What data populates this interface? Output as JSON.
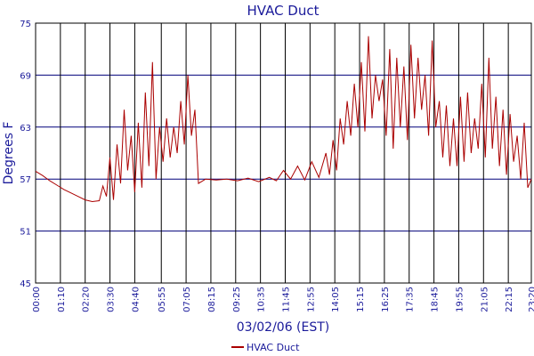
{
  "chart_data": {
    "type": "line",
    "title": "HVAC Duct",
    "xlabel": "03/02/06 (EST)",
    "ylabel": "Degrees F",
    "ylim": [
      45,
      75
    ],
    "yticks": [
      45,
      51,
      57,
      63,
      69,
      75
    ],
    "xlim": [
      "00:00",
      "23:20"
    ],
    "xticks": [
      "00:00",
      "01:10",
      "02:20",
      "03:30",
      "04:40",
      "05:55",
      "07:05",
      "08:15",
      "09:25",
      "10:35",
      "11:45",
      "12:55",
      "14:05",
      "15:15",
      "16:25",
      "17:35",
      "18:45",
      "19:55",
      "21:05",
      "22:15",
      "23:20"
    ],
    "grid": true,
    "legend": "bottom-center",
    "series": [
      {
        "name": "HVAC Duct",
        "color": "#aa0000",
        "points": [
          [
            "00:00",
            57.9
          ],
          [
            "00:20",
            57.4
          ],
          [
            "00:40",
            56.8
          ],
          [
            "01:00",
            56.3
          ],
          [
            "01:20",
            55.8
          ],
          [
            "01:40",
            55.4
          ],
          [
            "02:00",
            55.0
          ],
          [
            "02:20",
            54.6
          ],
          [
            "02:40",
            54.4
          ],
          [
            "03:00",
            54.5
          ],
          [
            "03:10",
            56.2
          ],
          [
            "03:20",
            55.0
          ],
          [
            "03:30",
            59.5
          ],
          [
            "03:40",
            54.6
          ],
          [
            "03:50",
            61.0
          ],
          [
            "04:00",
            56.5
          ],
          [
            "04:10",
            65.0
          ],
          [
            "04:20",
            58.0
          ],
          [
            "04:30",
            62.0
          ],
          [
            "04:40",
            55.5
          ],
          [
            "04:50",
            63.5
          ],
          [
            "05:00",
            56.0
          ],
          [
            "05:10",
            67.0
          ],
          [
            "05:20",
            58.5
          ],
          [
            "05:30",
            70.5
          ],
          [
            "05:40",
            57.0
          ],
          [
            "05:50",
            63.0
          ],
          [
            "06:00",
            59.0
          ],
          [
            "06:10",
            64.0
          ],
          [
            "06:20",
            59.5
          ],
          [
            "06:30",
            63.0
          ],
          [
            "06:40",
            60.0
          ],
          [
            "06:50",
            66.0
          ],
          [
            "07:00",
            61.0
          ],
          [
            "07:10",
            69.0
          ],
          [
            "07:20",
            62.0
          ],
          [
            "07:30",
            65.0
          ],
          [
            "07:40",
            56.5
          ],
          [
            "08:00",
            57.0
          ],
          [
            "08:30",
            56.9
          ],
          [
            "09:00",
            57.0
          ],
          [
            "09:30",
            56.8
          ],
          [
            "10:00",
            57.1
          ],
          [
            "10:30",
            56.7
          ],
          [
            "11:00",
            57.2
          ],
          [
            "11:20",
            56.8
          ],
          [
            "11:40",
            58.0
          ],
          [
            "12:00",
            57.0
          ],
          [
            "12:20",
            58.5
          ],
          [
            "12:40",
            56.9
          ],
          [
            "13:00",
            59.0
          ],
          [
            "13:20",
            57.2
          ],
          [
            "13:40",
            60.0
          ],
          [
            "13:50",
            57.5
          ],
          [
            "14:00",
            61.5
          ],
          [
            "14:10",
            58.0
          ],
          [
            "14:20",
            64.0
          ],
          [
            "14:30",
            61.0
          ],
          [
            "14:40",
            66.0
          ],
          [
            "14:50",
            62.0
          ],
          [
            "15:00",
            68.0
          ],
          [
            "15:10",
            63.0
          ],
          [
            "15:20",
            70.5
          ],
          [
            "15:30",
            62.5
          ],
          [
            "15:40",
            73.5
          ],
          [
            "15:50",
            64.0
          ],
          [
            "16:00",
            69.0
          ],
          [
            "16:10",
            66.0
          ],
          [
            "16:20",
            68.5
          ],
          [
            "16:30",
            62.0
          ],
          [
            "16:40",
            72.0
          ],
          [
            "16:50",
            60.5
          ],
          [
            "17:00",
            71.0
          ],
          [
            "17:10",
            63.0
          ],
          [
            "17:20",
            70.0
          ],
          [
            "17:30",
            61.5
          ],
          [
            "17:40",
            72.5
          ],
          [
            "17:50",
            64.0
          ],
          [
            "18:00",
            71.0
          ],
          [
            "18:10",
            65.0
          ],
          [
            "18:20",
            69.0
          ],
          [
            "18:30",
            62.0
          ],
          [
            "18:40",
            73.0
          ],
          [
            "18:50",
            63.0
          ],
          [
            "19:00",
            66.0
          ],
          [
            "19:10",
            59.5
          ],
          [
            "19:20",
            65.5
          ],
          [
            "19:30",
            58.5
          ],
          [
            "19:40",
            64.0
          ],
          [
            "19:50",
            58.5
          ],
          [
            "20:00",
            66.5
          ],
          [
            "20:10",
            59.0
          ],
          [
            "20:20",
            67.0
          ],
          [
            "20:30",
            60.0
          ],
          [
            "20:40",
            64.0
          ],
          [
            "20:50",
            60.5
          ],
          [
            "21:00",
            68.0
          ],
          [
            "21:10",
            59.5
          ],
          [
            "21:20",
            71.0
          ],
          [
            "21:30",
            60.5
          ],
          [
            "21:40",
            66.5
          ],
          [
            "21:50",
            58.5
          ],
          [
            "22:00",
            65.0
          ],
          [
            "22:10",
            57.5
          ],
          [
            "22:20",
            64.5
          ],
          [
            "22:30",
            59.0
          ],
          [
            "22:40",
            62.0
          ],
          [
            "22:50",
            57.0
          ],
          [
            "23:00",
            63.5
          ],
          [
            "23:10",
            56.0
          ],
          [
            "23:20",
            57.0
          ]
        ]
      }
    ]
  }
}
